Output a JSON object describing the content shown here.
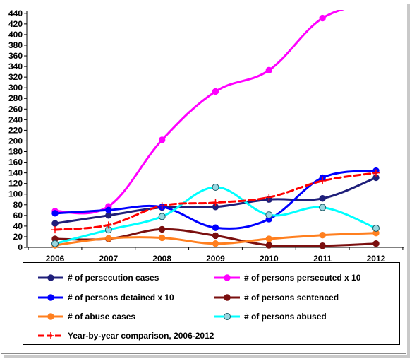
{
  "chart_data": {
    "type": "line",
    "title": "",
    "xlabel": "",
    "ylabel": "",
    "categories": [
      "2006",
      "2007",
      "2008",
      "2009",
      "2010",
      "2011",
      "2012"
    ],
    "ylim": [
      0,
      450
    ],
    "yticks": [
      0,
      20,
      40,
      60,
      80,
      100,
      120,
      140,
      160,
      180,
      200,
      220,
      240,
      260,
      280,
      300,
      320,
      340,
      360,
      380,
      400,
      420,
      440
    ],
    "grid": false,
    "legend_position": "bottom",
    "series": [
      {
        "name": "# of persecution cases",
        "color": "#1f1f7a",
        "marker": "circle",
        "dashed": false,
        "values": [
          45,
          60,
          75,
          76,
          90,
          92,
          131
        ]
      },
      {
        "name": "# of persons persecuted x 10",
        "color": "#ff00ff",
        "marker": "circle",
        "dashed": false,
        "values": [
          68,
          77,
          202,
          293,
          333,
          431,
          460
        ]
      },
      {
        "name": "# of persons detained x 10",
        "color": "#0000ff",
        "marker": "circle",
        "dashed": false,
        "values": [
          64,
          70,
          76,
          37,
          53,
          131,
          144
        ]
      },
      {
        "name": "# of persons sentenced",
        "color": "#7a0f0f",
        "marker": "circle",
        "dashed": false,
        "values": [
          16,
          16,
          34,
          22,
          4,
          3,
          7
        ]
      },
      {
        "name": "# of abuse cases",
        "color": "#ff7f1f",
        "marker": "circle",
        "dashed": false,
        "values": [
          4,
          17,
          18,
          7,
          16,
          23,
          27
        ]
      },
      {
        "name": "# of persons abused",
        "color": "#00ffff",
        "marker": "circle-filled",
        "dashed": false,
        "values": [
          7,
          33,
          58,
          113,
          61,
          75,
          36
        ]
      },
      {
        "name": "Year-by-year comparison, 2006-2012",
        "color": "#ff0000",
        "marker": "plus",
        "dashed": true,
        "values": [
          33,
          42,
          78,
          84,
          94,
          125,
          140
        ]
      }
    ]
  }
}
